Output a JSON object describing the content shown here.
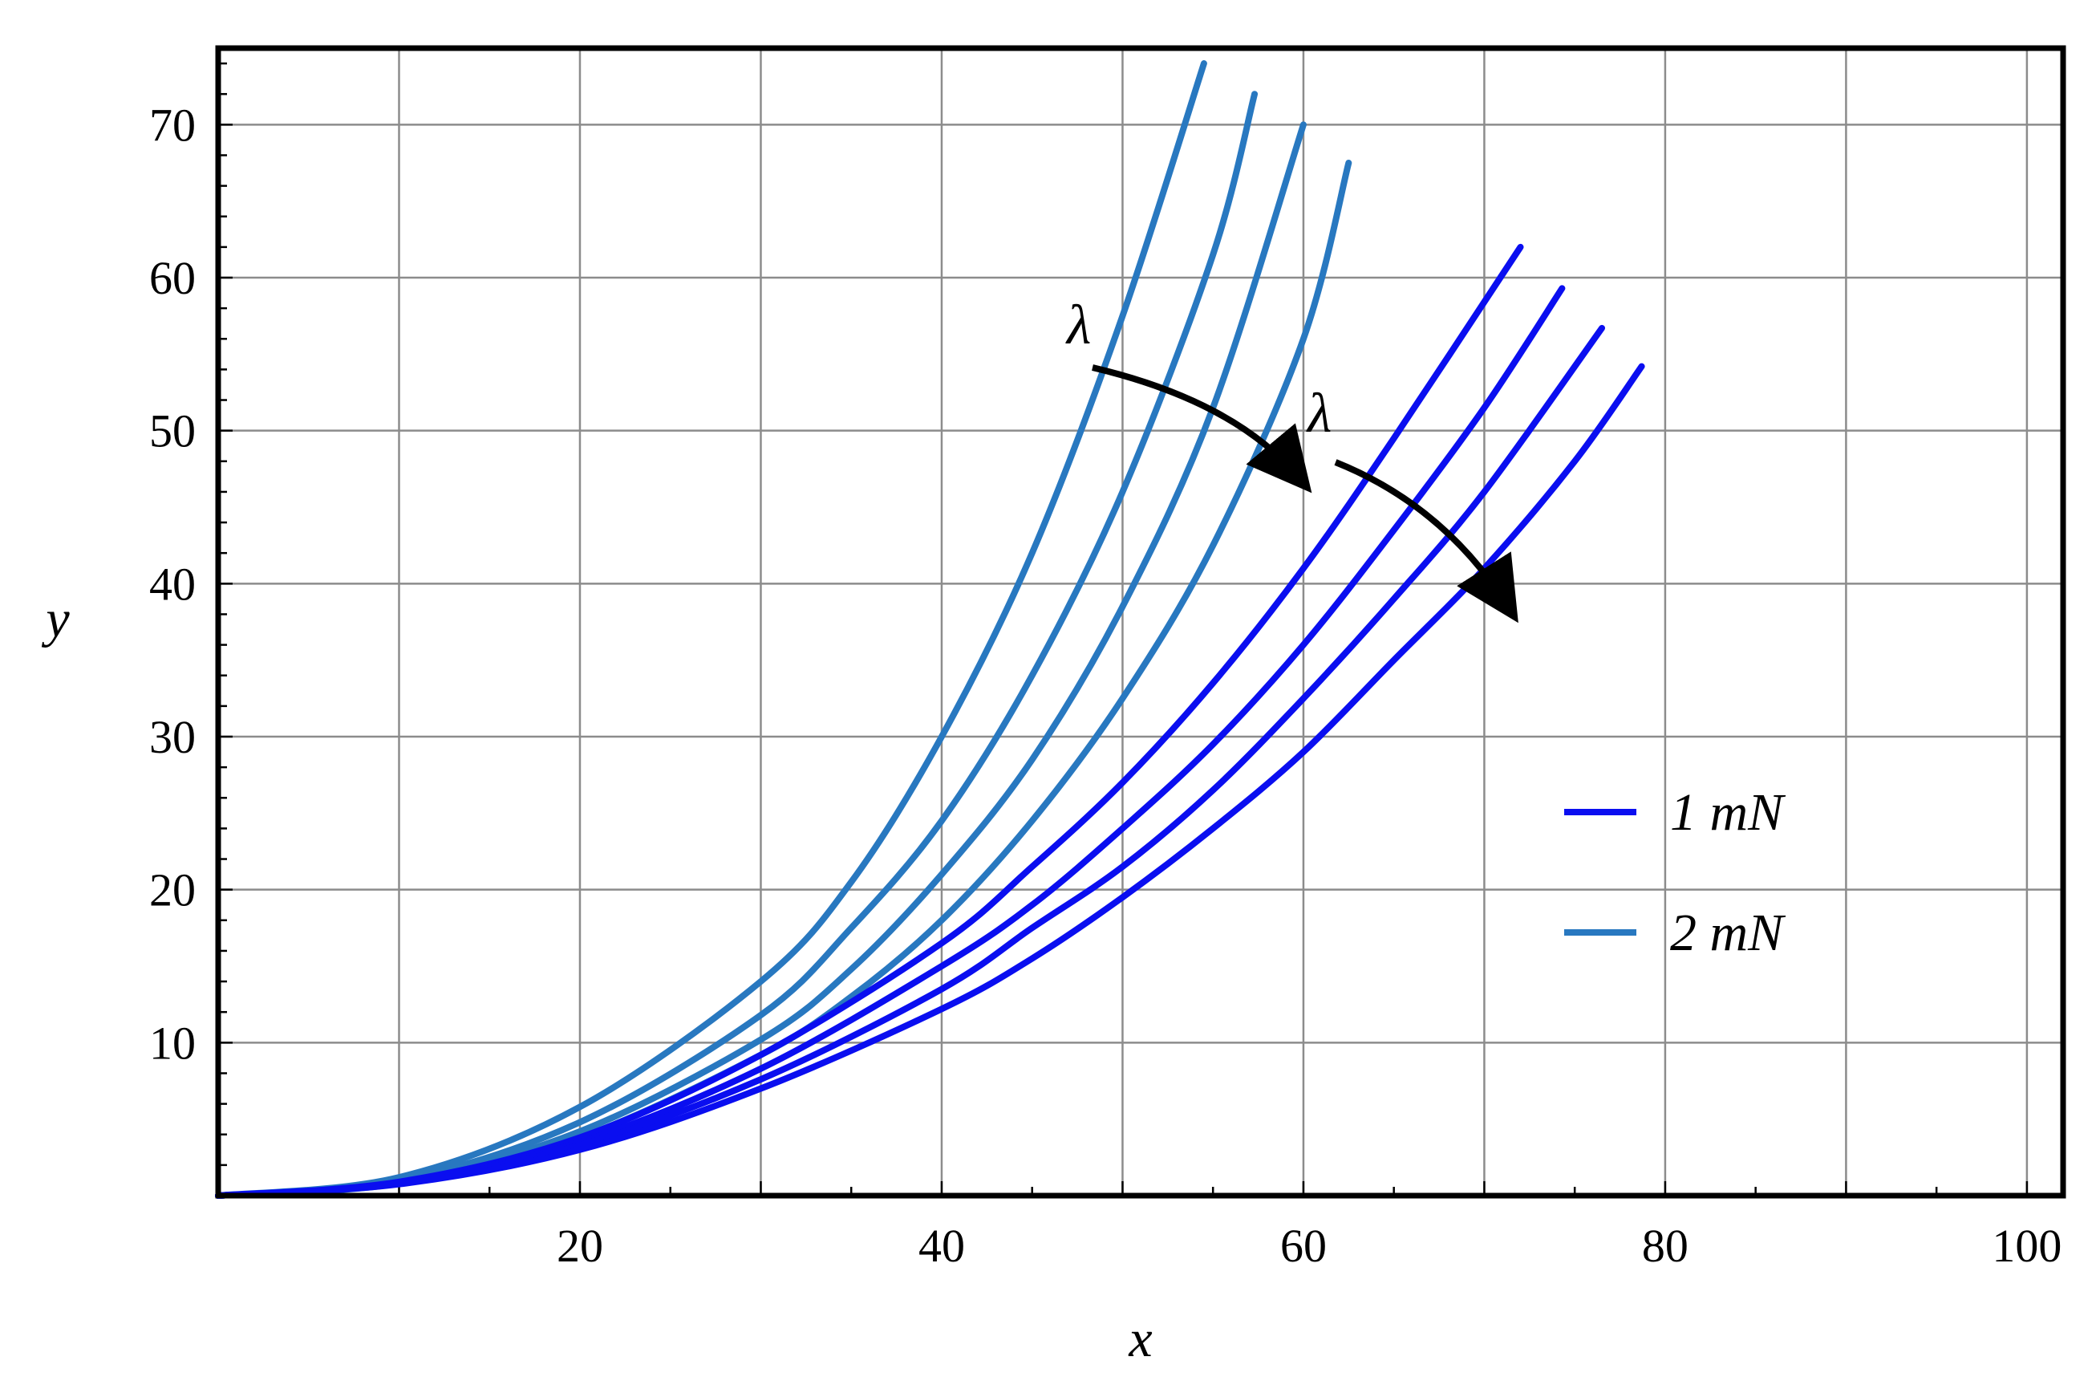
{
  "chart_data": {
    "type": "line",
    "title": "",
    "xlabel": "x",
    "ylabel": "y",
    "xlim": [
      0,
      102
    ],
    "ylim": [
      0,
      75
    ],
    "xticks": [
      20,
      40,
      60,
      80,
      100
    ],
    "yticks": [
      10,
      20,
      30,
      40,
      50,
      60,
      70
    ],
    "grid": true,
    "legend_position": "right",
    "legend": [
      {
        "label": "1 mN",
        "color": "#0a0ef0"
      },
      {
        "label": "2 mN",
        "color": "#2878c0"
      }
    ],
    "annotations": [
      {
        "text": "λ",
        "group": "2 mN"
      },
      {
        "text": "λ",
        "group": "1 mN"
      }
    ],
    "series": [
      {
        "group": "2 mN",
        "color": "#2878c0",
        "x": [
          0,
          10,
          20,
          30,
          35,
          40,
          45,
          50,
          54.5
        ],
        "y": [
          0,
          1.2,
          5.8,
          14.0,
          20.5,
          30.0,
          42.0,
          57.5,
          74.0
        ]
      },
      {
        "group": "2 mN",
        "color": "#2878c0",
        "x": [
          0,
          10,
          20,
          30,
          35,
          40,
          45,
          50,
          55,
          57.3
        ],
        "y": [
          0,
          1.0,
          4.8,
          11.8,
          17.5,
          24.5,
          34.0,
          46.0,
          61.5,
          72.0
        ]
      },
      {
        "group": "2 mN",
        "color": "#2878c0",
        "x": [
          0,
          10,
          20,
          30,
          35,
          40,
          45,
          50,
          55,
          60
        ],
        "y": [
          0,
          0.9,
          4.2,
          10.2,
          14.8,
          21.0,
          28.5,
          38.5,
          51.5,
          70.0
        ]
      },
      {
        "group": "2 mN",
        "color": "#2878c0",
        "x": [
          0,
          10,
          20,
          30,
          35,
          40,
          45,
          50,
          55,
          60,
          62.5
        ],
        "y": [
          0,
          0.8,
          3.8,
          9.2,
          13.0,
          18.0,
          24.5,
          32.5,
          42.5,
          56.0,
          67.5
        ]
      },
      {
        "group": "1 mN",
        "color": "#0a0ef0",
        "x": [
          0,
          10,
          20,
          30,
          40,
          45,
          50,
          55,
          60,
          65,
          72
        ],
        "y": [
          0,
          0.9,
          3.8,
          9.2,
          16.5,
          21.5,
          27.0,
          33.5,
          41.0,
          49.5,
          62.0
        ]
      },
      {
        "group": "1 mN",
        "color": "#0a0ef0",
        "x": [
          0,
          10,
          20,
          30,
          40,
          45,
          50,
          55,
          60,
          65,
          70,
          74.3
        ],
        "y": [
          0,
          0.85,
          3.5,
          8.3,
          15.0,
          19.0,
          24.0,
          29.5,
          36.0,
          43.5,
          51.5,
          59.3
        ]
      },
      {
        "group": "1 mN",
        "color": "#0a0ef0",
        "x": [
          0,
          10,
          20,
          30,
          40,
          45,
          50,
          55,
          60,
          65,
          70,
          76.5
        ],
        "y": [
          0,
          0.8,
          3.3,
          7.6,
          13.5,
          17.5,
          21.5,
          26.5,
          32.5,
          39.0,
          46.0,
          56.7
        ]
      },
      {
        "group": "1 mN",
        "color": "#0a0ef0",
        "x": [
          0,
          10,
          20,
          30,
          40,
          45,
          50,
          55,
          60,
          65,
          70,
          75,
          78.7
        ],
        "y": [
          0,
          0.75,
          3.0,
          7.0,
          12.2,
          15.5,
          19.5,
          24.0,
          29.0,
          35.0,
          41.0,
          48.0,
          54.2
        ]
      }
    ]
  }
}
